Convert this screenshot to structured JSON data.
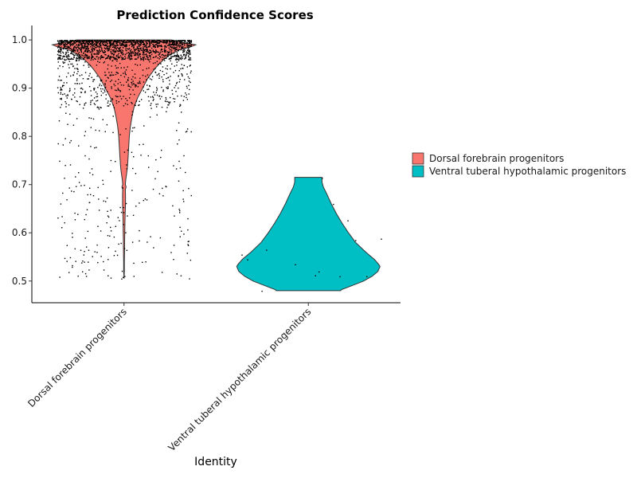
{
  "chart_data": {
    "type": "violin",
    "title": "Prediction Confidence Scores",
    "xlabel": "Identity",
    "ylabel": "",
    "ylim": [
      0.455,
      1.025
    ],
    "yticks": [
      0.5,
      0.6,
      0.7,
      0.8,
      0.9,
      1.0
    ],
    "ytick_labels": [
      "0.5",
      "0.6",
      "0.7",
      "0.8",
      "0.9",
      "1.0"
    ],
    "grid": false,
    "legend_position": "right",
    "categories": [
      "Dorsal forebrain progenitors",
      "Ventral tuberal hypothalamic progenitors"
    ],
    "series": [
      {
        "name": "Dorsal forebrain progenitors",
        "color": "#F8766D",
        "range": [
          0.505,
          1.0
        ],
        "density_profile": [
          [
            1.0,
            0.66
          ],
          [
            0.995,
            0.82
          ],
          [
            0.99,
            1.0
          ],
          [
            0.985,
            0.92
          ],
          [
            0.98,
            0.78
          ],
          [
            0.97,
            0.65
          ],
          [
            0.96,
            0.56
          ],
          [
            0.95,
            0.49
          ],
          [
            0.94,
            0.43
          ],
          [
            0.92,
            0.33
          ],
          [
            0.9,
            0.26
          ],
          [
            0.88,
            0.19
          ],
          [
            0.86,
            0.14
          ],
          [
            0.84,
            0.11
          ],
          [
            0.82,
            0.088
          ],
          [
            0.8,
            0.074
          ],
          [
            0.78,
            0.066
          ],
          [
            0.76,
            0.058
          ],
          [
            0.74,
            0.05
          ],
          [
            0.73,
            0.043
          ],
          [
            0.72,
            0.034
          ],
          [
            0.71,
            0.024
          ],
          [
            0.7,
            0.018
          ],
          [
            0.695,
            0.03
          ],
          [
            0.69,
            0.018
          ],
          [
            0.68,
            0.02
          ],
          [
            0.66,
            0.02
          ],
          [
            0.64,
            0.016
          ],
          [
            0.62,
            0.013
          ],
          [
            0.6,
            0.01
          ],
          [
            0.58,
            0.008
          ],
          [
            0.56,
            0.007
          ],
          [
            0.54,
            0.005
          ],
          [
            0.52,
            0.005
          ],
          [
            0.505,
            0.0
          ]
        ]
      },
      {
        "name": "Ventral tuberal hypothalamic progenitors",
        "color": "#00BFC4",
        "range": [
          0.48,
          0.715
        ],
        "density_profile": [
          [
            0.715,
            0.19
          ],
          [
            0.705,
            0.19
          ],
          [
            0.695,
            0.21
          ],
          [
            0.68,
            0.26
          ],
          [
            0.66,
            0.32
          ],
          [
            0.64,
            0.39
          ],
          [
            0.62,
            0.47
          ],
          [
            0.6,
            0.56
          ],
          [
            0.58,
            0.66
          ],
          [
            0.56,
            0.8
          ],
          [
            0.545,
            0.92
          ],
          [
            0.535,
            0.98
          ],
          [
            0.53,
            1.0
          ],
          [
            0.52,
            0.97
          ],
          [
            0.51,
            0.89
          ],
          [
            0.5,
            0.77
          ],
          [
            0.49,
            0.6
          ],
          [
            0.482,
            0.46
          ],
          [
            0.48,
            0.45
          ]
        ],
        "points": [
          [
            0.35,
            0.626
          ],
          [
            -0.55,
            0.545
          ],
          [
            -0.38,
            0.565
          ],
          [
            -0.12,
            0.535
          ],
          [
            0.06,
            0.512
          ],
          [
            -0.6,
            0.555
          ],
          [
            0.42,
            0.585
          ],
          [
            0.12,
            0.714
          ],
          [
            0.22,
            0.66
          ],
          [
            0.52,
            0.51
          ],
          [
            0.28,
            0.51
          ],
          [
            -0.42,
            0.48
          ],
          [
            0.65,
            0.588
          ],
          [
            0.09,
            0.52
          ]
        ]
      }
    ]
  }
}
